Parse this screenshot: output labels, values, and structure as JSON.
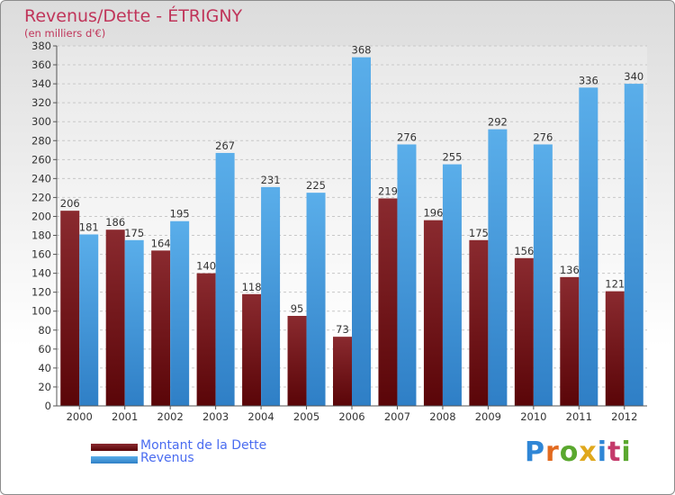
{
  "header": {
    "title": "Revenus/Dette - ÉTRIGNY",
    "subtitle": "(en milliers d'€)"
  },
  "chart_data": {
    "type": "bar",
    "title": "Revenus/Dette - ÉTRIGNY",
    "subtitle": "(en milliers d'€)",
    "categories": [
      "2000",
      "2001",
      "2002",
      "2003",
      "2004",
      "2005",
      "2006",
      "2007",
      "2008",
      "2009",
      "2010",
      "2011",
      "2012"
    ],
    "series": [
      {
        "name": "Montant de la Dette",
        "values": [
          206,
          186,
          164,
          140,
          118,
          95,
          73,
          219,
          196,
          175,
          156,
          136,
          121
        ]
      },
      {
        "name": "Revenus",
        "values": [
          181,
          175,
          195,
          267,
          231,
          225,
          368,
          276,
          255,
          292,
          276,
          336,
          340
        ]
      }
    ],
    "ylim": [
      0,
      380
    ],
    "ytick_step": 20,
    "grid": true,
    "legend": "bottom-left",
    "colors": {
      "dette": "#7a1a1f",
      "revenus": "#4aa3e8"
    }
  },
  "legend": {
    "items": [
      {
        "label": "Montant de la Dette",
        "color": "#6a0f14"
      },
      {
        "label": "Revenus",
        "color": "#4aa3e8"
      }
    ]
  },
  "logo": {
    "text": "Proxiti"
  }
}
